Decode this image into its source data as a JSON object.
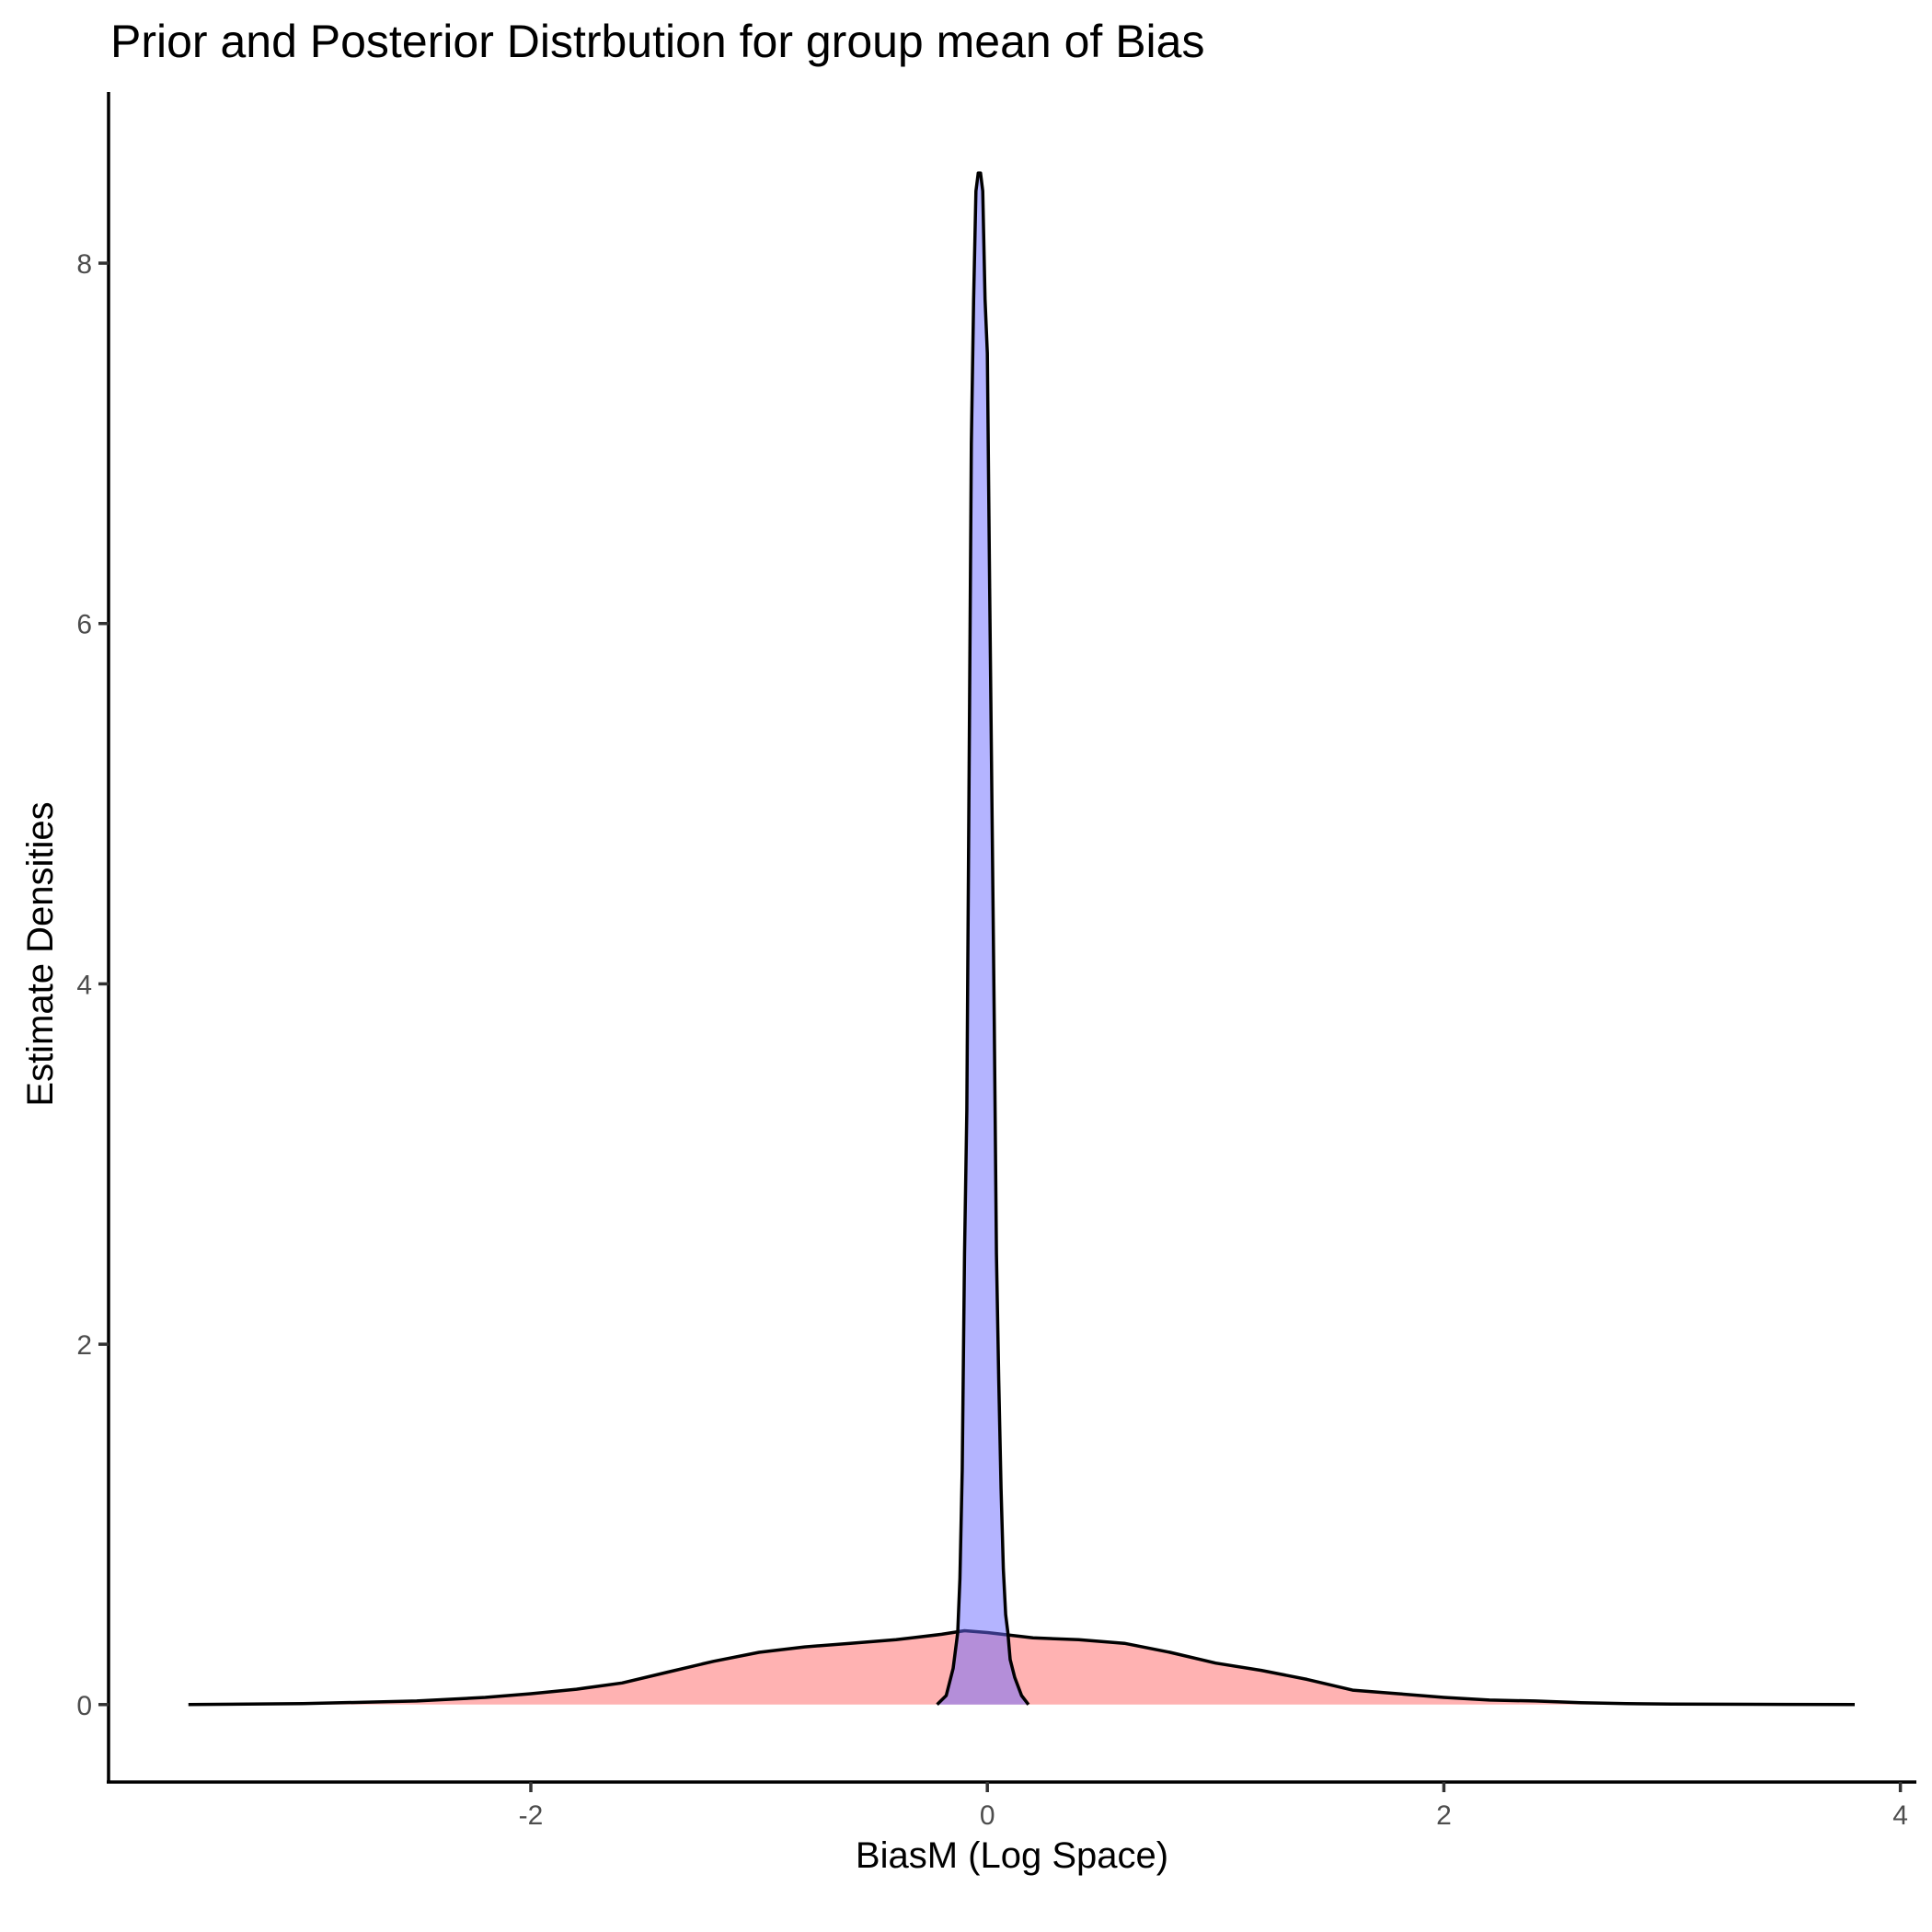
{
  "chart_data": {
    "type": "area",
    "title": "Prior and Posterior Distrbution for group mean of Bias",
    "xlabel": "BiasM (Log Space)",
    "ylabel": "Estimate Densities",
    "xlim": [
      -3.85,
      4.07
    ],
    "ylim": [
      -0.43,
      8.95
    ],
    "xticks": [
      -2,
      0,
      2,
      4
    ],
    "yticks": [
      0,
      2,
      4,
      6,
      8
    ],
    "grid": false,
    "legend": "none",
    "series": [
      {
        "fill": "#ff7f7f",
        "opacity": 0.6,
        "x": [
          -3.5,
          -3.0,
          -2.5,
          -2.2,
          -2.0,
          -1.8,
          -1.6,
          -1.4,
          -1.2,
          -1.0,
          -0.8,
          -0.6,
          -0.4,
          -0.2,
          -0.1,
          0.0,
          0.2,
          0.4,
          0.6,
          0.8,
          1.0,
          1.2,
          1.4,
          1.6,
          1.8,
          2.0,
          2.2,
          2.4,
          2.6,
          2.8,
          3.0,
          3.5,
          3.8
        ],
        "y": [
          0.0,
          0.005,
          0.02,
          0.04,
          0.06,
          0.085,
          0.12,
          0.18,
          0.24,
          0.29,
          0.32,
          0.34,
          0.36,
          0.39,
          0.41,
          0.4,
          0.37,
          0.36,
          0.34,
          0.29,
          0.23,
          0.19,
          0.14,
          0.08,
          0.06,
          0.04,
          0.025,
          0.02,
          0.01,
          0.005,
          0.003,
          0.001,
          0.0
        ]
      },
      {
        "fill": "#6a6aff",
        "opacity": 0.5,
        "x": [
          -0.22,
          -0.18,
          -0.15,
          -0.13,
          -0.12,
          -0.11,
          -0.1,
          -0.09,
          -0.08,
          -0.07,
          -0.06,
          -0.05,
          -0.04,
          -0.03,
          -0.02,
          -0.01,
          0.0,
          0.01,
          0.02,
          0.03,
          0.04,
          0.05,
          0.06,
          0.07,
          0.08,
          0.09,
          0.1,
          0.12,
          0.15,
          0.18
        ],
        "y": [
          0.0,
          0.05,
          0.2,
          0.4,
          0.7,
          1.3,
          2.5,
          3.3,
          5.2,
          7.0,
          7.8,
          8.4,
          8.5,
          8.5,
          8.4,
          7.8,
          7.5,
          6.2,
          5.0,
          3.8,
          2.5,
          1.8,
          1.2,
          0.75,
          0.5,
          0.4,
          0.25,
          0.15,
          0.05,
          0.0
        ]
      }
    ]
  }
}
